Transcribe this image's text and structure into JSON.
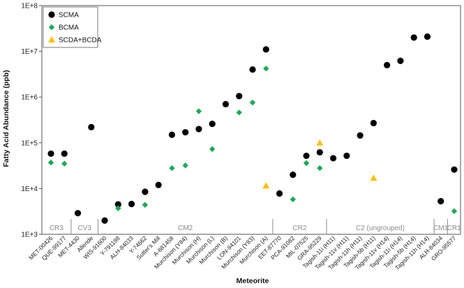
{
  "chart_data": {
    "type": "scatter",
    "title": "",
    "xlabel": "Meteorite",
    "ylabel": "Fatty Acid Abundance (ppb)",
    "yscale": "log",
    "ylim": [
      1000,
      100000000
    ],
    "ytick_values": [
      1000,
      10000,
      100000,
      1000000,
      10000000,
      100000000
    ],
    "ytick_labels": [
      "1E+3",
      "1E+4",
      "1E+5",
      "1E+6",
      "1E+7",
      "1E+8"
    ],
    "legend_position": "top-left",
    "categories": [
      "MET-00426",
      "QUE-99177",
      "MET-4430",
      "Allende",
      "WIS-91600",
      "Y-791198",
      "ALH-84033",
      "Y-74662",
      "Sutter's Mill",
      "A-881458",
      "Murchison (Y84)",
      "Murchison (H)",
      "Murchison (L)",
      "Murchison (B)",
      "LON-94101",
      "Murchison (Y83)",
      "Murchison (A)",
      "EET-87770",
      "PCA-91082",
      "MIL-07525",
      "GRA-95229",
      "Tagish-11i (H11)",
      "Tagish-11v (H11)",
      "Tagish-11h (H11)",
      "Tagish-5b (H11)",
      "Tagish-11v (H14)",
      "Tagish-11i (H14)",
      "Tagish-5b (H14)",
      "Tagish-11h (H14)",
      "ALH-84034",
      "GRO-95577"
    ],
    "series": [
      {
        "name": "SCMA",
        "marker": "circle",
        "color": "#000000",
        "values": [
          58000,
          58000,
          2900,
          220000,
          2000,
          4500,
          4600,
          8500,
          12000,
          150000,
          170000,
          200000,
          260000,
          700000,
          1050000,
          4000000,
          11000000,
          7800,
          20000,
          52000,
          62000,
          46000,
          52000,
          145000,
          270000,
          5000000,
          6200000,
          20000000,
          21000000,
          5300,
          26000
        ]
      },
      {
        "name": "BCMA",
        "marker": "diamond",
        "color": "#1aaa55",
        "values": [
          37000,
          35000,
          null,
          null,
          null,
          3700,
          null,
          4400,
          null,
          28000,
          32000,
          490000,
          73000,
          null,
          460000,
          760000,
          4200000,
          null,
          5800,
          36000,
          28000,
          null,
          null,
          null,
          null,
          null,
          null,
          null,
          null,
          null,
          3200
        ]
      },
      {
        "name": "SCDA+BCDA",
        "marker": "triangle",
        "color": "#ffc000",
        "values": [
          null,
          null,
          null,
          null,
          null,
          null,
          null,
          null,
          null,
          null,
          null,
          null,
          null,
          null,
          null,
          null,
          11500,
          null,
          null,
          null,
          100000,
          null,
          null,
          null,
          17000,
          null,
          null,
          null,
          null,
          null,
          null
        ]
      }
    ],
    "groups": [
      {
        "label": "CR3",
        "start": 0,
        "end": 1
      },
      {
        "label": "CV3",
        "start": 2,
        "end": 3
      },
      {
        "label": "CM2",
        "start": 4,
        "end": 16
      },
      {
        "label": "CR2",
        "start": 17,
        "end": 20
      },
      {
        "label": "C2 (ungrouped)",
        "start": 21,
        "end": 28
      },
      {
        "label": "CM1",
        "start": 29,
        "end": 29
      },
      {
        "label": "CR1",
        "start": 30,
        "end": 30
      }
    ]
  }
}
